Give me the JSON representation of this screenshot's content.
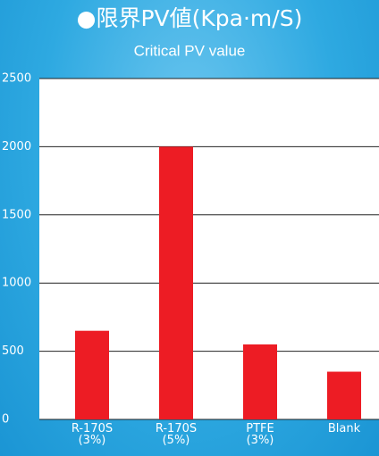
{
  "chart_data": {
    "type": "bar",
    "title": "●限界PV値(Kpa·m/S)",
    "subtitle": "Critical PV value",
    "categories": [
      "R-170S\n(3%)",
      "R-170S\n(5%)",
      "PTFE\n(3%)",
      "Blank"
    ],
    "values": [
      650,
      2000,
      550,
      350
    ],
    "color": "#ed1c24",
    "ylim": [
      0,
      2500
    ],
    "yticks": [
      0,
      500,
      1000,
      1500,
      2000,
      2500
    ],
    "grid": true
  }
}
